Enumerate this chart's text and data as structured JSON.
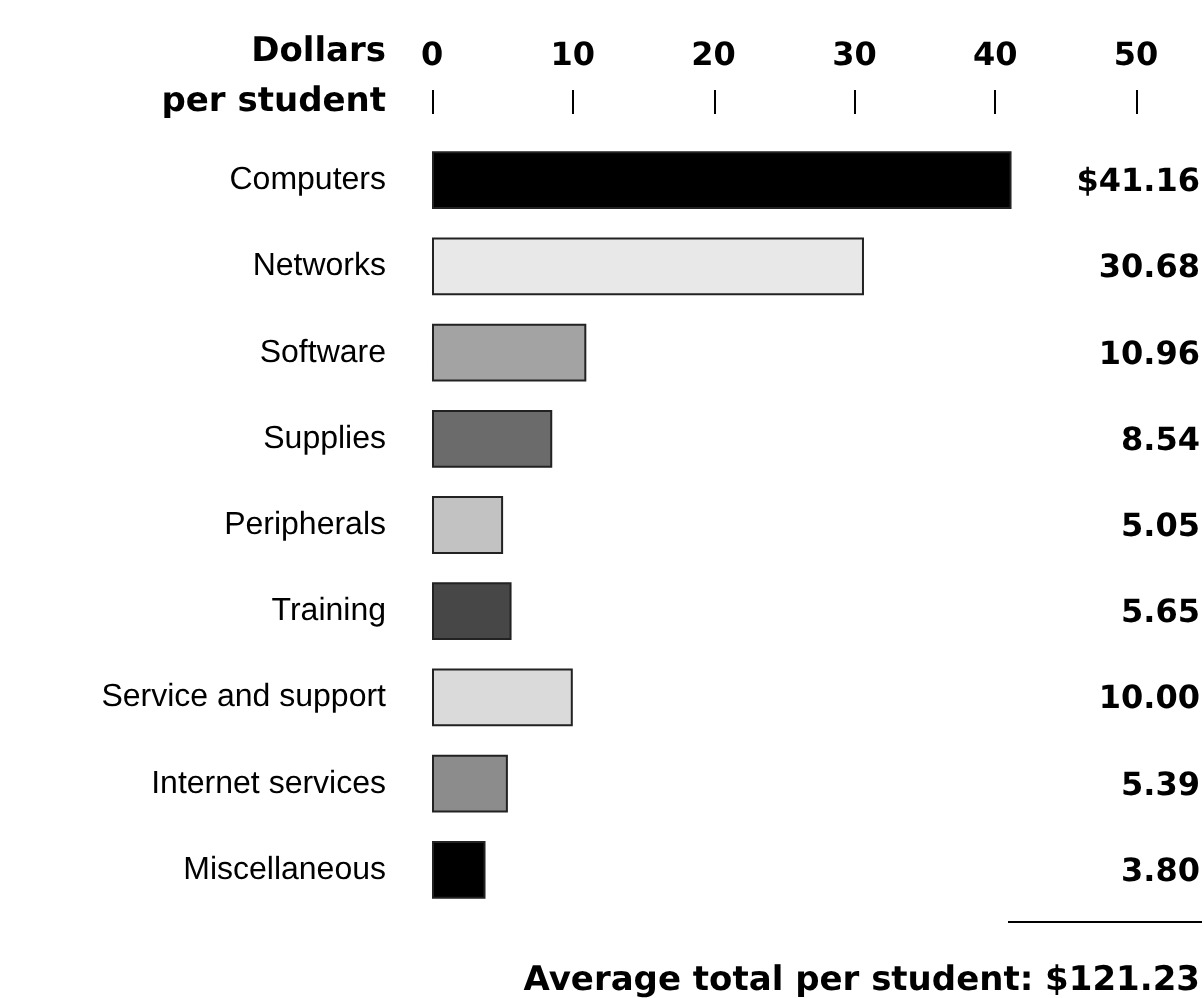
{
  "chart_data": {
    "type": "bar",
    "orientation": "horizontal",
    "xlabel": "Dollars\nper student",
    "categories": [
      "Computers",
      "Networks",
      "Software",
      "Supplies",
      "Peripherals",
      "Training",
      "Service and support",
      "Internet services",
      "Miscellaneous"
    ],
    "values": [
      41.16,
      30.68,
      10.96,
      8.54,
      5.05,
      5.65,
      10.0,
      5.39,
      3.8
    ],
    "colors": [
      "#000000",
      "#e8e8e8",
      "#a3a3a3",
      "#6b6b6b",
      "#c2c2c2",
      "#474747",
      "#dadada",
      "#8c8c8c",
      "#000000"
    ],
    "value_labels": [
      "$41.16",
      "30.68",
      "10.96",
      "8.54",
      "5.05",
      "5.65",
      "10.00",
      "5.39",
      "3.80"
    ],
    "xlim": [
      0,
      50
    ],
    "xticks": [
      0,
      10,
      20,
      30,
      40,
      50
    ],
    "grid": false,
    "annotations": [
      "Average total per student: $121.23"
    ]
  }
}
